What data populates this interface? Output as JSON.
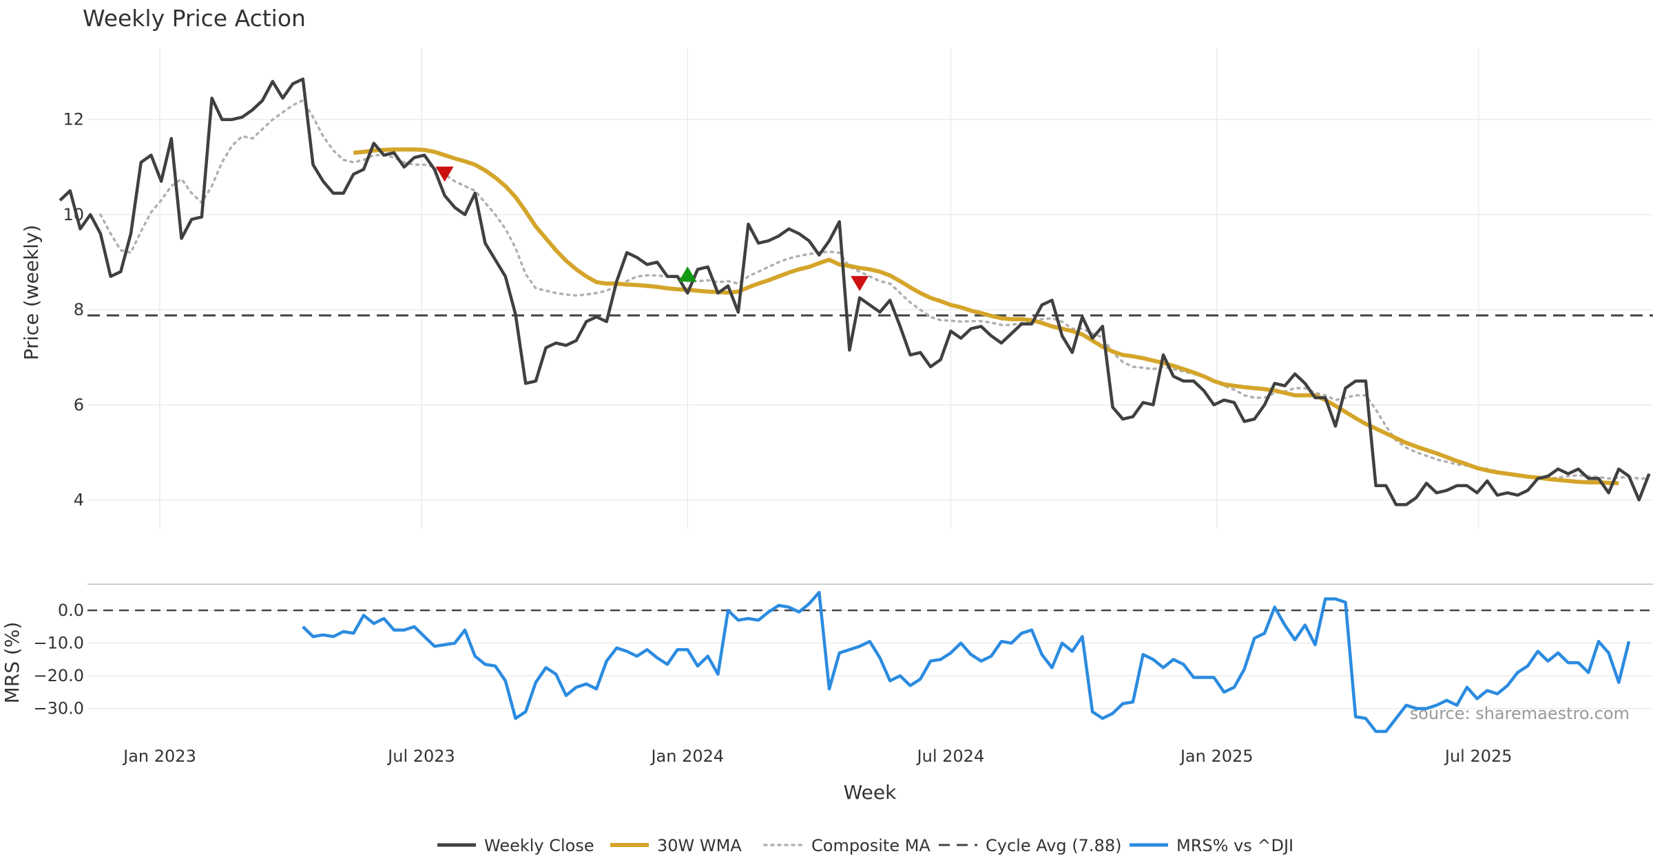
{
  "chart_data": {
    "type": "line",
    "title": "Weekly Price Action",
    "xlabel": "Week",
    "x_ticks": [
      "Jan 2023",
      "Jul 2023",
      "Jan 2024",
      "Jul 2024",
      "Jan 2025",
      "Jul 2025"
    ],
    "x_range": [
      "2022-10-24",
      "2025-10-27"
    ],
    "price_panel": {
      "ylabel": "Price (weekly)",
      "ylim": [
        3.4,
        13.5
      ],
      "y_ticks": [
        "4",
        "6",
        "8",
        "10",
        "12"
      ],
      "cycle_avg": 7.88,
      "series": [
        {
          "name": "Weekly Close",
          "color": "#404040",
          "style": "solid",
          "values": [
            10.3,
            10.5,
            9.7,
            10.0,
            9.6,
            8.7,
            8.8,
            9.6,
            11.1,
            11.25,
            10.7,
            11.6,
            9.5,
            9.9,
            9.95,
            12.45,
            12.0,
            12.0,
            12.05,
            12.2,
            12.4,
            12.8,
            12.45,
            12.75,
            12.85,
            11.05,
            10.7,
            10.45,
            10.45,
            10.85,
            10.95,
            11.5,
            11.25,
            11.3,
            11.0,
            11.2,
            11.25,
            10.95,
            10.4,
            10.15,
            10.0,
            10.45,
            9.4,
            9.05,
            8.7,
            7.9,
            6.45,
            6.5,
            7.2,
            7.3,
            7.25,
            7.35,
            7.75,
            7.85,
            7.75,
            8.6,
            9.2,
            9.1,
            8.95,
            9.0,
            8.7,
            8.7,
            8.35,
            8.85,
            8.9,
            8.35,
            8.5,
            7.95,
            9.8,
            9.4,
            9.45,
            9.55,
            9.7,
            9.6,
            9.45,
            9.15,
            9.45,
            9.85,
            7.15,
            8.25,
            8.1,
            7.95,
            8.2,
            7.65,
            7.05,
            7.1,
            6.8,
            6.95,
            7.55,
            7.4,
            7.6,
            7.65,
            7.45,
            7.3,
            7.5,
            7.7,
            7.7,
            8.1,
            8.2,
            7.45,
            7.1,
            7.85,
            7.4,
            7.65,
            5.95,
            5.7,
            5.75,
            6.05,
            6.0,
            7.05,
            6.6,
            6.5,
            6.5,
            6.3,
            6.0,
            6.1,
            6.05,
            5.65,
            5.7,
            6.0,
            6.45,
            6.4,
            6.65,
            6.45,
            6.15,
            6.15,
            5.55,
            6.35,
            6.5,
            6.5,
            4.3,
            4.3,
            3.9,
            3.9,
            4.05,
            4.35,
            4.15,
            4.2,
            4.3,
            4.3,
            4.15,
            4.4,
            4.1,
            4.15,
            4.1,
            4.2,
            4.45,
            4.5,
            4.65,
            4.55,
            4.65,
            4.45,
            4.45,
            4.15,
            4.65,
            4.5,
            4.0,
            4.55
          ]
        },
        {
          "name": "30W WMA",
          "color": "#d4a52a",
          "style": "solid",
          "values": [
            null,
            null,
            null,
            null,
            null,
            null,
            null,
            null,
            null,
            null,
            null,
            null,
            null,
            null,
            null,
            null,
            null,
            null,
            null,
            null,
            null,
            null,
            null,
            null,
            null,
            null,
            null,
            null,
            null,
            11.3,
            11.32,
            11.35,
            11.36,
            11.37,
            11.37,
            11.37,
            11.36,
            11.32,
            11.25,
            11.18,
            11.12,
            11.05,
            10.93,
            10.78,
            10.6,
            10.37,
            10.07,
            9.75,
            9.5,
            9.25,
            9.03,
            8.85,
            8.7,
            8.58,
            8.55,
            8.55,
            8.53,
            8.52,
            8.5,
            8.48,
            8.45,
            8.43,
            8.42,
            8.4,
            8.38,
            8.37,
            8.36,
            8.38,
            8.47,
            8.55,
            8.62,
            8.7,
            8.78,
            8.85,
            8.9,
            8.98,
            9.05,
            8.95,
            8.92,
            8.88,
            8.85,
            8.8,
            8.72,
            8.6,
            8.47,
            8.35,
            8.25,
            8.18,
            8.1,
            8.05,
            7.98,
            7.93,
            7.87,
            7.82,
            7.8,
            7.8,
            7.78,
            7.72,
            7.65,
            7.6,
            7.55,
            7.48,
            7.35,
            7.22,
            7.12,
            7.05,
            7.02,
            6.98,
            6.93,
            6.88,
            6.82,
            6.75,
            6.68,
            6.6,
            6.5,
            6.43,
            6.4,
            6.37,
            6.35,
            6.33,
            6.3,
            6.25,
            6.2,
            6.2,
            6.2,
            6.1,
            5.98,
            5.85,
            5.72,
            5.6,
            5.5,
            5.4,
            5.3,
            5.2,
            5.12,
            5.05,
            4.98,
            4.9,
            4.82,
            4.75,
            4.67,
            4.62,
            4.58,
            4.55,
            4.52,
            4.49,
            4.47,
            4.44,
            4.42,
            4.4,
            4.38,
            4.37,
            4.37,
            4.36,
            4.35
          ]
        },
        {
          "name": "Composite MA",
          "color": "#b0b0b0",
          "style": "dotted",
          "values": [
            null,
            null,
            null,
            null,
            10.0,
            9.6,
            9.25,
            9.2,
            9.65,
            10.05,
            10.3,
            10.6,
            10.75,
            10.45,
            10.25,
            10.6,
            11.1,
            11.45,
            11.65,
            11.6,
            11.8,
            12.0,
            12.15,
            12.3,
            12.4,
            12.05,
            11.65,
            11.35,
            11.15,
            11.1,
            11.15,
            11.25,
            11.25,
            11.2,
            11.1,
            11.05,
            11.05,
            11.0,
            10.85,
            10.7,
            10.6,
            10.5,
            10.25,
            10.0,
            9.7,
            9.3,
            8.75,
            8.45,
            8.4,
            8.35,
            8.32,
            8.3,
            8.32,
            8.35,
            8.4,
            8.5,
            8.6,
            8.7,
            8.72,
            8.72,
            8.7,
            8.68,
            8.6,
            8.6,
            8.62,
            8.58,
            8.6,
            8.55,
            8.7,
            8.8,
            8.9,
            9.0,
            9.08,
            9.13,
            9.17,
            9.2,
            9.22,
            9.2,
            8.9,
            8.8,
            8.7,
            8.6,
            8.55,
            8.35,
            8.15,
            8.0,
            7.85,
            7.78,
            7.77,
            7.75,
            7.76,
            7.76,
            7.73,
            7.68,
            7.68,
            7.72,
            7.75,
            7.8,
            7.82,
            7.75,
            7.6,
            7.6,
            7.5,
            7.42,
            7.1,
            6.9,
            6.8,
            6.78,
            6.75,
            6.8,
            6.75,
            6.7,
            6.65,
            6.6,
            6.5,
            6.4,
            6.32,
            6.2,
            6.15,
            6.15,
            6.25,
            6.28,
            6.35,
            6.35,
            6.25,
            6.2,
            6.1,
            6.15,
            6.2,
            6.2,
            5.9,
            5.55,
            5.25,
            5.1,
            5.0,
            4.93,
            4.85,
            4.8,
            4.75,
            4.72,
            4.68,
            4.65,
            4.6,
            4.55,
            4.5,
            4.47,
            4.45,
            4.45,
            4.47,
            4.5,
            4.52,
            4.5,
            4.48,
            4.45,
            4.47,
            4.48,
            4.45,
            4.45
          ]
        },
        {
          "name": "Cycle Avg (7.88)",
          "color": "#444444",
          "style": "dashed",
          "value": 7.88
        }
      ],
      "markers": [
        {
          "type": "sell",
          "color": "#cc1111",
          "week_index": 38,
          "value": 10.85
        },
        {
          "type": "buy",
          "color": "#119911",
          "week_index": 62,
          "value": 8.75
        },
        {
          "type": "sell",
          "color": "#cc1111",
          "week_index": 79,
          "value": 8.55
        }
      ]
    },
    "mrs_panel": {
      "ylabel": "MRS (%)",
      "ylim": [
        -41,
        8
      ],
      "y_ticks": [
        "0.0",
        "−10.0",
        "−20.0",
        "−30.0"
      ],
      "reference": 0.0,
      "series": [
        {
          "name": "MRS% vs ^DJI",
          "color": "#2b8be0",
          "style": "solid",
          "values": [
            null,
            null,
            null,
            null,
            null,
            null,
            null,
            null,
            null,
            null,
            null,
            null,
            null,
            null,
            null,
            null,
            null,
            null,
            null,
            null,
            null,
            null,
            null,
            null,
            -5,
            -8,
            -7.5,
            -8,
            -6.5,
            -7,
            -1.5,
            -4,
            -2.5,
            -6,
            -6,
            -5,
            -8,
            -11,
            -10.5,
            -10,
            -6,
            -14,
            -16.5,
            -17,
            -21.5,
            -33,
            -31,
            -22,
            -17.5,
            -19.5,
            -26,
            -23.5,
            -22.5,
            -24,
            -15.5,
            -11.5,
            -12.5,
            -14,
            -12,
            -14.5,
            -16.5,
            -12,
            -12,
            -17,
            -14,
            -19.5,
            0,
            -3,
            -2.5,
            -3,
            -0.5,
            1.5,
            1,
            -0.5,
            2,
            5.5,
            -24,
            -13,
            -12,
            -11,
            -9.5,
            -14.5,
            -21.5,
            -20,
            -23,
            -21,
            -15.5,
            -15,
            -13,
            -10,
            -13.5,
            -15.5,
            -14,
            -9.5,
            -10,
            -7,
            -6,
            -13.5,
            -17.5,
            -10,
            -12.5,
            -8,
            -31,
            -33,
            -31.5,
            -28.5,
            -28,
            -13.5,
            -15,
            -17.5,
            -15,
            -16.5,
            -20.5,
            -20.5,
            -20.5,
            -25,
            -23.5,
            -18,
            -8.5,
            -7,
            1,
            -4.5,
            -9,
            -4.5,
            -10.5,
            3.5,
            3.5,
            2.5,
            -32.5,
            -33,
            -37,
            -37,
            -33,
            -29,
            -30,
            -30,
            -29,
            -27.5,
            -29,
            -23.5,
            -27,
            -24.5,
            -25.5,
            -23,
            -19,
            -17,
            -12.5,
            -15.5,
            -13,
            -16,
            -16,
            -19,
            -9.5,
            -13,
            -22,
            -9.5
          ]
        }
      ]
    },
    "source": "source: sharemaestro.com",
    "legend_position": "bottom"
  }
}
